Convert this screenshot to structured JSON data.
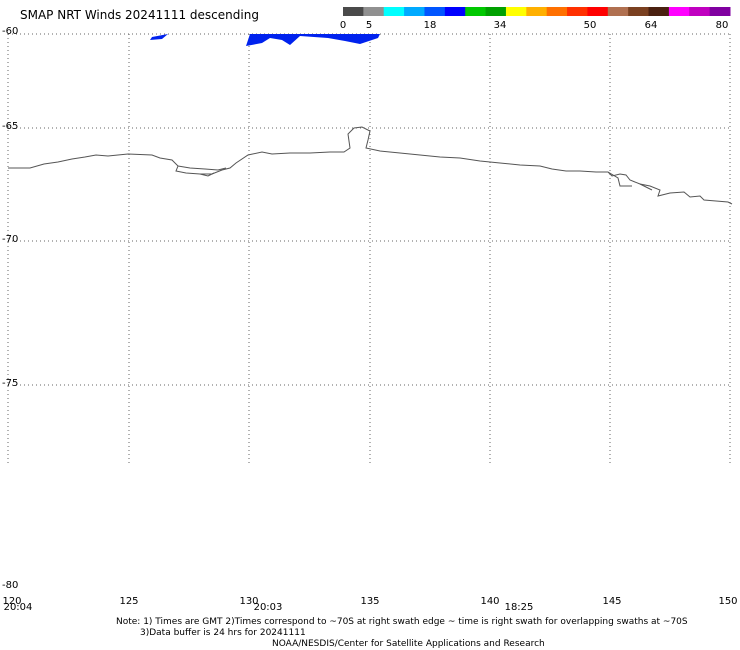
{
  "title": "SMAP NRT Winds  20241111 descending",
  "legend": {
    "labels": [
      "0",
      "5",
      "18",
      "34",
      "50",
      "64",
      "80"
    ],
    "segments": [
      {
        "color": "#4a4a4a"
      },
      {
        "color": "#909090"
      },
      {
        "color": "#00ffff"
      },
      {
        "color": "#00aaff"
      },
      {
        "color": "#0055ff"
      },
      {
        "color": "#0000ff"
      },
      {
        "color": "#00c800"
      },
      {
        "color": "#00a000"
      },
      {
        "color": "#ffff00"
      },
      {
        "color": "#ffb000"
      },
      {
        "color": "#ff7000"
      },
      {
        "color": "#ff3000"
      },
      {
        "color": "#ff0000"
      },
      {
        "color": "#b07050"
      },
      {
        "color": "#7a4020"
      },
      {
        "color": "#4a2010"
      },
      {
        "color": "#ff00ff"
      },
      {
        "color": "#c000c0"
      },
      {
        "color": "#8000a0"
      }
    ]
  },
  "lat_labels": [
    "-60",
    "-65",
    "-70",
    "-75",
    "-80"
  ],
  "lon_labels": [
    "120",
    "125",
    "130",
    "135",
    "140",
    "145",
    "150"
  ],
  "times": [
    "20:04",
    "20:03",
    "18:25"
  ],
  "notes": {
    "line1": "Note: 1) Times are GMT 2)Times correspond to ~70S at right swath edge ~ time is right swath for overlapping swaths at ~70S",
    "line2": "3)Data buffer is 24 hrs for 20241111",
    "line3": "NOAA/NESDIS/Center for Satellite Applications and Research"
  },
  "colors": {
    "swath": "#0022ee",
    "coast": "#555555",
    "grid": "#666666"
  }
}
